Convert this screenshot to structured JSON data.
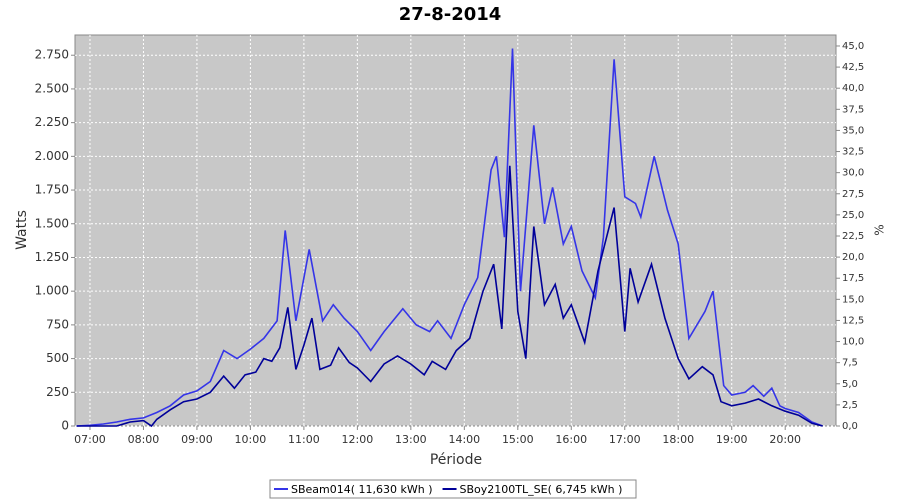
{
  "chart_data": {
    "type": "line",
    "title": "27-8-2014",
    "x_label": "Période",
    "y_label": "Watts",
    "y2_label": "%",
    "grid": true,
    "legend": "bottom",
    "xlim": [
      6.72,
      20.95
    ],
    "xticks": [
      {
        "value": 7,
        "label": "07:00"
      },
      {
        "value": 8,
        "label": "08:00"
      },
      {
        "value": 9,
        "label": "09:00"
      },
      {
        "value": 10,
        "label": "10:00"
      },
      {
        "value": 11,
        "label": "11:00"
      },
      {
        "value": 12,
        "label": "12:00"
      },
      {
        "value": 13,
        "label": "13:00"
      },
      {
        "value": 14,
        "label": "14:00"
      },
      {
        "value": 15,
        "label": "15:00"
      },
      {
        "value": 16,
        "label": "16:00"
      },
      {
        "value": 17,
        "label": "17:00"
      },
      {
        "value": 18,
        "label": "18:00"
      },
      {
        "value": 19,
        "label": "19:00"
      },
      {
        "value": 20,
        "label": "20:00"
      }
    ],
    "ylim": [
      0,
      2900
    ],
    "yticks": [
      0,
      250,
      500,
      750,
      {
        "value": 1000,
        "label": "1.000"
      },
      {
        "value": 1250,
        "label": "1.250"
      },
      {
        "value": 1500,
        "label": "1.500"
      },
      {
        "value": 1750,
        "label": "1.750"
      },
      {
        "value": 2000,
        "label": "2.000"
      },
      {
        "value": 2250,
        "label": "2.250"
      },
      {
        "value": 2500,
        "label": "2.500"
      },
      {
        "value": 2750,
        "label": "2.750"
      }
    ],
    "y2lim": [
      0,
      46.3
    ],
    "y2ticks": [
      {
        "value": 0,
        "label": "0,0"
      },
      {
        "value": 2.5,
        "label": "2,5"
      },
      {
        "value": 5,
        "label": "5,0"
      },
      {
        "value": 7.5,
        "label": "7,5"
      },
      {
        "value": 10,
        "label": "10,0"
      },
      {
        "value": 12.5,
        "label": "12,5"
      },
      {
        "value": 15,
        "label": "15,0"
      },
      {
        "value": 17.5,
        "label": "17,5"
      },
      {
        "value": 20,
        "label": "20,0"
      },
      {
        "value": 22.5,
        "label": "22,5"
      },
      {
        "value": 25,
        "label": "25,0"
      },
      {
        "value": 27.5,
        "label": "27,5"
      },
      {
        "value": 30,
        "label": "30,0"
      },
      {
        "value": 32.5,
        "label": "32,5"
      },
      {
        "value": 35,
        "label": "35,0"
      },
      {
        "value": 37.5,
        "label": "37,5"
      },
      {
        "value": 40,
        "label": "40,0"
      },
      {
        "value": 42.5,
        "label": "42,5"
      },
      {
        "value": 45,
        "label": "45,0"
      }
    ],
    "series": [
      {
        "name": "SBeam014( 11,630 kWh )",
        "color": "#3535e8",
        "x": [
          6.75,
          7.0,
          7.25,
          7.5,
          7.75,
          8.0,
          8.25,
          8.5,
          8.75,
          9.0,
          9.25,
          9.5,
          9.75,
          10.0,
          10.25,
          10.5,
          10.65,
          10.85,
          11.1,
          11.35,
          11.55,
          11.75,
          12.0,
          12.25,
          12.5,
          12.85,
          13.1,
          13.35,
          13.5,
          13.75,
          14.0,
          14.25,
          14.5,
          14.6,
          14.75,
          14.9,
          15.05,
          15.3,
          15.5,
          15.65,
          15.85,
          16.0,
          16.2,
          16.45,
          16.6,
          16.8,
          17.0,
          17.2,
          17.3,
          17.55,
          17.8,
          18.0,
          18.2,
          18.5,
          18.65,
          18.85,
          19.0,
          19.25,
          19.4,
          19.6,
          19.75,
          19.9,
          20.0,
          20.25,
          20.5,
          20.7
        ],
        "values": [
          0,
          5,
          15,
          30,
          50,
          60,
          100,
          150,
          230,
          260,
          330,
          560,
          500,
          570,
          650,
          780,
          1450,
          780,
          1310,
          780,
          900,
          800,
          700,
          560,
          700,
          870,
          750,
          700,
          780,
          650,
          900,
          1100,
          1900,
          2000,
          1400,
          2800,
          1000,
          2230,
          1500,
          1770,
          1350,
          1480,
          1150,
          950,
          1400,
          2720,
          1700,
          1650,
          1550,
          2000,
          1600,
          1350,
          650,
          850,
          1000,
          300,
          230,
          250,
          300,
          220,
          280,
          150,
          130,
          100,
          30,
          0
        ]
      },
      {
        "name": "SBoy2100TL_SE( 6,745 kWh )",
        "color": "#000099",
        "x": [
          6.75,
          7.0,
          7.5,
          7.75,
          8.0,
          8.15,
          8.25,
          8.5,
          8.75,
          9.0,
          9.25,
          9.5,
          9.7,
          9.9,
          10.1,
          10.25,
          10.4,
          10.55,
          10.7,
          10.85,
          11.0,
          11.15,
          11.3,
          11.5,
          11.65,
          11.85,
          12.0,
          12.25,
          12.5,
          12.75,
          13.0,
          13.25,
          13.4,
          13.65,
          13.85,
          14.1,
          14.35,
          14.55,
          14.7,
          14.85,
          15.0,
          15.15,
          15.3,
          15.5,
          15.7,
          15.85,
          16.0,
          16.25,
          16.5,
          16.8,
          17.0,
          17.1,
          17.25,
          17.5,
          17.75,
          18.0,
          18.2,
          18.45,
          18.65,
          18.8,
          19.0,
          19.25,
          19.5,
          19.75,
          20.0,
          20.25,
          20.5,
          20.7
        ],
        "values": [
          0,
          0,
          0,
          30,
          40,
          0,
          50,
          120,
          180,
          200,
          250,
          370,
          280,
          380,
          400,
          500,
          480,
          580,
          880,
          420,
          600,
          800,
          420,
          450,
          580,
          470,
          430,
          330,
          460,
          520,
          460,
          380,
          480,
          420,
          560,
          650,
          1000,
          1200,
          720,
          1930,
          850,
          500,
          1480,
          900,
          1050,
          800,
          900,
          620,
          1150,
          1620,
          700,
          1170,
          920,
          1200,
          800,
          500,
          350,
          440,
          380,
          180,
          150,
          170,
          200,
          150,
          110,
          80,
          20,
          0
        ]
      }
    ]
  }
}
